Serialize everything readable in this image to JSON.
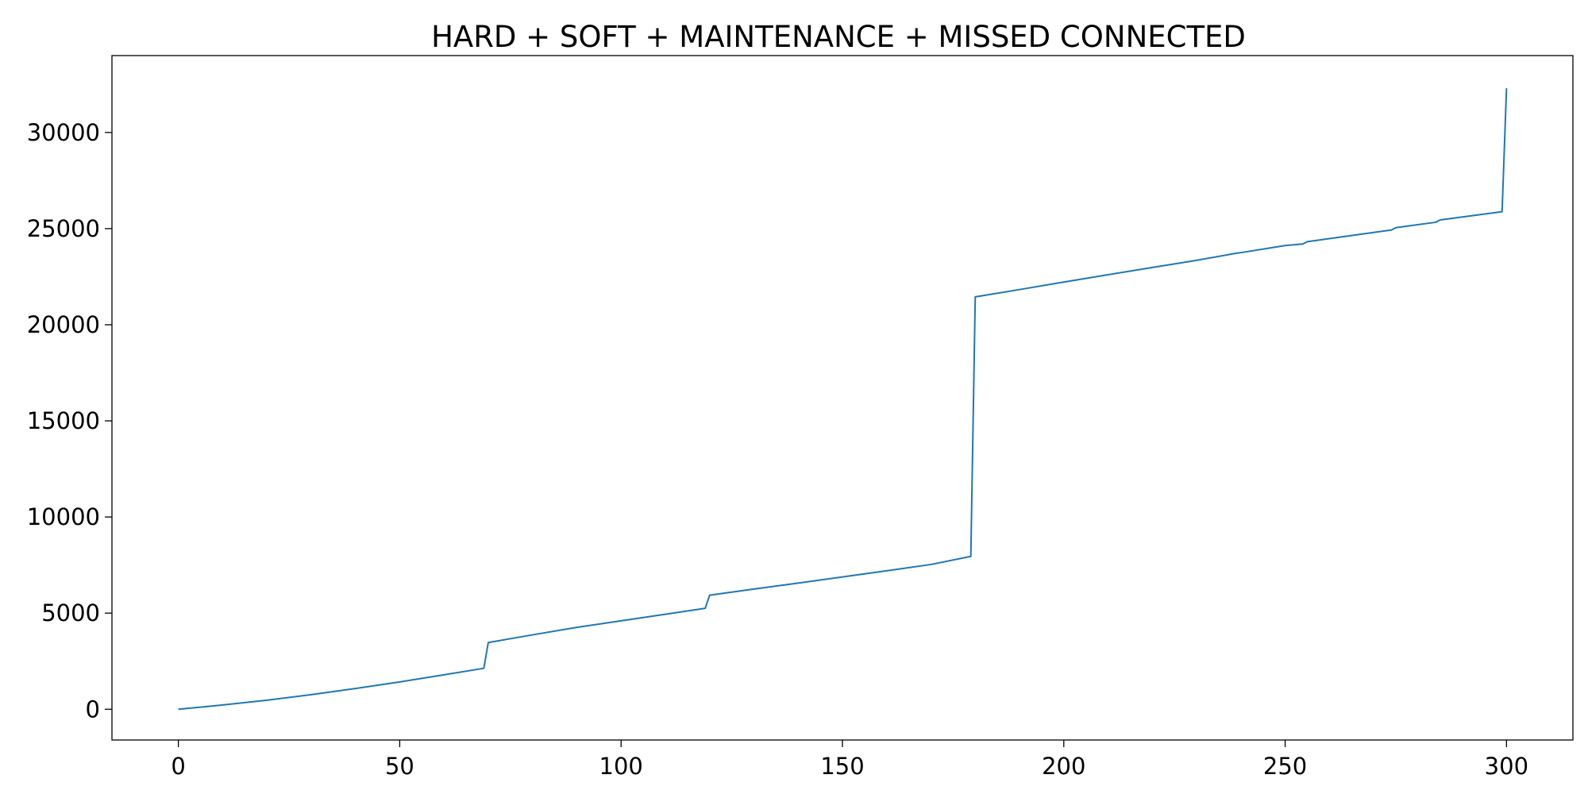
{
  "chart_data": {
    "type": "line",
    "title": "HARD + SOFT + MAINTENANCE + MISSED CONNECTED",
    "xlabel": "",
    "ylabel": "",
    "xlim": [
      -15,
      315
    ],
    "ylim": [
      -1600,
      34000
    ],
    "x_ticks": [
      0,
      50,
      100,
      150,
      200,
      250,
      300
    ],
    "x_tick_labels": [
      "0",
      "50",
      "100",
      "150",
      "200",
      "250",
      "300"
    ],
    "y_ticks": [
      0,
      5000,
      10000,
      15000,
      20000,
      25000,
      30000
    ],
    "y_tick_labels": [
      "0",
      "5000",
      "10000",
      "15000",
      "20000",
      "25000",
      "30000"
    ],
    "grid": false,
    "legend": "none",
    "series": [
      {
        "color": "#1f77b4",
        "x": [
          0,
          10,
          20,
          30,
          40,
          50,
          60,
          69,
          70,
          80,
          90,
          100,
          110,
          119,
          120,
          130,
          140,
          150,
          160,
          170,
          179,
          180,
          190,
          200,
          210,
          220,
          230,
          239,
          240,
          250,
          254,
          255,
          265,
          274,
          275,
          284,
          285,
          299,
          300
        ],
        "y": [
          0,
          220,
          470,
          760,
          1080,
          1420,
          1790,
          2130,
          3470,
          3870,
          4260,
          4600,
          4940,
          5250,
          5930,
          6250,
          6560,
          6880,
          7200,
          7530,
          7950,
          21450,
          21830,
          22220,
          22600,
          22980,
          23350,
          23720,
          23750,
          24120,
          24200,
          24320,
          24640,
          24930,
          25050,
          25330,
          25450,
          25880,
          32300
        ]
      }
    ]
  }
}
